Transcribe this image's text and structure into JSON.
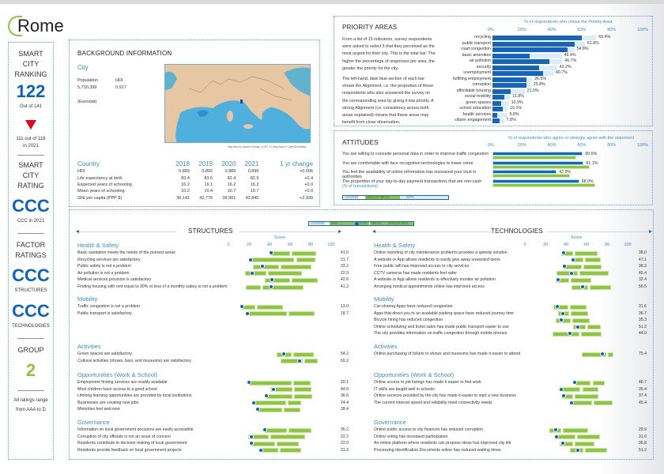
{
  "city_name": "Rome",
  "left_column": {
    "ranking_title": "SMART CITY RANKING",
    "ranking_title_lines": [
      "SMART",
      "CITY",
      "RANKING"
    ],
    "ranking": "122",
    "ranking_out_of": "Out of 141",
    "trend": "down",
    "prev_ranking_lines": [
      "111 out of 118",
      "in 2021"
    ],
    "rating_title_lines": [
      "SMART",
      "CITY RATING"
    ],
    "rating": "CCC",
    "rating_prev": "CCC in 2021",
    "factor_title_lines": [
      "FACTOR",
      "RATINGS"
    ],
    "structures_rating": "CCC",
    "structures_label": "STRUCTURES",
    "technologies_rating": "CCC",
    "technologies_label": "TECHNOLOGIES",
    "group_title": "GROUP",
    "group": "2",
    "footnote_lines": [
      "All ratings range",
      "from AAA to D"
    ],
    "colors": {
      "rating": "#0a63c2",
      "group": "#8dc63f",
      "trend": "#e8001c"
    }
  },
  "background": {
    "title": "BACKGROUND INFORMATION",
    "city_header": "City",
    "population_label": "Population",
    "population_value": "5,730,399",
    "hdi_label": "HDI",
    "hdi_value": "0.917",
    "source": "(Eurostat)",
    "map_credit": "Map tiles by Stamen Design CCBY 3.0 Map Data © OpenStreetMap",
    "country_table": {
      "headers": [
        "Country",
        "2018",
        "2019",
        "2020",
        "2021",
        "1 yr change"
      ],
      "rows": [
        [
          "HDI",
          "0.883",
          "0.892",
          "0.889",
          "0.895",
          "+0.006"
        ],
        [
          "Life expectancy at birth",
          "83.4",
          "83.5",
          "82.4",
          "82.9",
          "+0.4"
        ],
        [
          "Expected years of schooling",
          "16.2",
          "16.1",
          "16.2",
          "16.2",
          "+0.0"
        ],
        [
          "Mean years of schooling",
          "10.2",
          "10.4",
          "10.7",
          "10.7",
          "+0.0"
        ],
        [
          "GNI per capita (PPP $)",
          "36,141",
          "42,776",
          "39,901",
          "42,840",
          "+2,939"
        ]
      ]
    }
  },
  "priority_areas": {
    "title": "PRIORITY AREAS",
    "axis_title": "% of respondents who chose the Priority Area",
    "ticks": [
      "0%",
      "20%",
      "40%",
      "60%",
      "80%",
      "100%"
    ],
    "description_1": "From a list of 15 indicators, survey respondents were asked to select 5 that they perceived as the most urgent for their city. This is the total bar. The higher the percentage of responses per area, the greater the priority for the city.",
    "description_2": "The left-hand, dark blue section of each bar shows the Alignment, i.e. the proportion of those respondents who also answered the survey on the corresponding area by giving it low priority. A strong Alignment (i.e. consistency across both areas explained) means that these areas may benefit from close observation.",
    "items": [
      {
        "label": "recycling",
        "total": 69.4,
        "alignment": 60,
        "value_label": "69.4%"
      },
      {
        "label": "public transport",
        "total": 61.8,
        "alignment": 55,
        "value_label": "61.8%"
      },
      {
        "label": "road congestion",
        "total": 54.8,
        "alignment": 50,
        "value_label": "54.8%"
      },
      {
        "label": "basic amenities",
        "total": 46.4,
        "alignment": 25,
        "value_label": "46.4%"
      },
      {
        "label": "air pollution",
        "total": 46.7,
        "alignment": 38,
        "value_label": "46.7%"
      },
      {
        "label": "security",
        "total": 43.2,
        "alignment": 31,
        "value_label": "43.2%"
      },
      {
        "label": "unemployment",
        "total": 40.7,
        "alignment": 34,
        "value_label": "40.7%"
      },
      {
        "label": "fulfilling employment",
        "total": 26.5,
        "alignment": 23,
        "value_label": "26.5%"
      },
      {
        "label": "corruption",
        "total": 25.8,
        "alignment": 23,
        "value_label": "25.8%"
      },
      {
        "label": "affordable housing",
        "total": 21.5,
        "alignment": 12,
        "value_label": "21.5%"
      },
      {
        "label": "social mobility",
        "total": 11.8,
        "alignment": 8,
        "value_label": "11.8%"
      },
      {
        "label": "green spaces",
        "total": 10.9,
        "alignment": 6,
        "value_label": "10.9%"
      },
      {
        "label": "school education",
        "total": 10.1,
        "alignment": 7,
        "value_label": "10.1%"
      },
      {
        "label": "health services",
        "total": 9.8,
        "alignment": 3,
        "value_label": "9.8%"
      },
      {
        "label": "citizen engagement",
        "total": 7.8,
        "alignment": 5,
        "value_label": "7.8%"
      }
    ],
    "colors": {
      "alignment": "#1565c0",
      "total": "#daeefa"
    }
  },
  "attitudes": {
    "title": "ATTITUDES",
    "axis_title": "% of respondents who agree or strongly agree with the statement",
    "ticks": [
      "0%",
      "20%",
      "40%",
      "60%",
      "80%",
      "100%"
    ],
    "items": [
      {
        "label": "You are willing to concede personal data in order to improve traffic congestion",
        "sub": "",
        "city": 60.5,
        "group": 56,
        "value_label": "60.5%"
      },
      {
        "label": "You are comfortable with face recognition technologies to lower crime",
        "sub": "",
        "city": 61.1,
        "group": 65,
        "value_label": "61.1%"
      },
      {
        "label": "You feel the availability of online information has increased your trust in authorities",
        "sub": "",
        "city": 42.9,
        "group": 52,
        "value_label": "42.9%"
      },
      {
        "label": "The proportion of your day-to-day payment transactions that are non-cash",
        "sub": "(% of transactions)",
        "city": 58.0,
        "group": 69,
        "value_label": "58.0%"
      }
    ],
    "legend": {
      "label": "LEGEND:",
      "group": "GROUP MEAN",
      "city": "CITY"
    }
  },
  "scores": {
    "legend": {
      "label": "LEGEND:",
      "min": "MIN",
      "city": "CITY",
      "mean": "MEAN",
      "max": "GROUP MAX"
    },
    "score_label": "Score",
    "ticks": [
      "0",
      "20",
      "40",
      "60",
      "80",
      "100"
    ],
    "structures": {
      "title": "STRUCTURES",
      "categories": [
        {
          "name": "Health & Safety",
          "items": [
            {
              "label": "Basic sanitation meets the needs of the poorest areas",
              "value": 41.5,
              "min": 41,
              "mean": 61,
              "max": 85,
              "value_label": "41.5"
            },
            {
              "label": "Recycling services are satisfactory",
              "value": 21.7,
              "min": 21,
              "mean": 65,
              "max": 84,
              "value_label": "21.7"
            },
            {
              "label": "Public safety is not a problem",
              "value": 33.2,
              "min": 24,
              "mean": 50,
              "max": 80,
              "value_label": "33.2"
            },
            {
              "label": "Air pollution is not a problem",
              "value": 22.9,
              "min": 16,
              "mean": 38,
              "max": 71,
              "value_label": "22.9"
            },
            {
              "label": "Medical services provision is satisfactory",
              "value": 42.6,
              "min": 35,
              "mean": 61,
              "max": 86,
              "value_label": "42.6"
            },
            {
              "label": "Finding housing with rent equal to 30% or less of a monthly salary is not a problem",
              "value": 41.2,
              "min": 17,
              "mean": 32,
              "max": 72,
              "value_label": "41.2"
            }
          ]
        },
        {
          "name": "Mobility",
          "items": [
            {
              "label": "Traffic congestion is not a problem",
              "value": 13.0,
              "min": 13,
              "mean": 27,
              "max": 52,
              "value_label": "13.0"
            },
            {
              "label": "Public transport is satisfactory",
              "value": 18.7,
              "min": 18,
              "mean": 58,
              "max": 83,
              "value_label": "18.7"
            }
          ]
        },
        {
          "name": "Activities",
          "items": [
            {
              "label": "Green spaces are satisfactory",
              "value": 54.2,
              "min": 47,
              "mean": 62,
              "max": 82,
              "value_label": "54.2"
            },
            {
              "label": "Cultural activities (shows, bars, and museums) are satisfactory",
              "value": 69.2,
              "min": 51,
              "mean": 73,
              "max": 86,
              "value_label": "69.2"
            }
          ]
        },
        {
          "name": "Opportunities (Work & School)",
          "items": [
            {
              "label": "Employment finding services are readily available",
              "value": 20.1,
              "min": 20,
              "mean": 62,
              "max": 79,
              "value_label": "20.1"
            },
            {
              "label": "Most children have access to a good school",
              "value": 44.0,
              "min": 41,
              "mean": 63,
              "max": 80,
              "value_label": "44.0"
            },
            {
              "label": "Lifelong learning opportunities are provided by local institutions",
              "value": 36.6,
              "min": 36,
              "mean": 63,
              "max": 81,
              "value_label": "36.6"
            },
            {
              "label": "Businesses are creating new jobs",
              "value": 24.4,
              "min": 24,
              "mean": 57,
              "max": 70,
              "value_label": "24.4"
            },
            {
              "label": "Minorities feel welcome",
              "value": 28.4,
              "min": 28,
              "mean": 53,
              "max": 69,
              "value_label": "28.4"
            }
          ]
        },
        {
          "name": "Governance",
          "items": [
            {
              "label": "Information on local government decisions are easily accessible",
              "value": 35.2,
              "min": 35,
              "mean": 58,
              "max": 80,
              "value_label": "35.2"
            },
            {
              "label": "Corruption of city officials is not an issue of concern",
              "value": 22.2,
              "min": 19,
              "mean": 40,
              "max": 74,
              "value_label": "22.2"
            },
            {
              "label": "Residents contribute to decision making of local government",
              "value": 22.0,
              "min": 22,
              "mean": 46,
              "max": 68,
              "value_label": "22.0"
            },
            {
              "label": "Residents provide feedback on local government projects",
              "value": 31.3,
              "min": 31,
              "mean": 49,
              "max": 70,
              "value_label": "31.3"
            }
          ]
        }
      ]
    },
    "technologies": {
      "title": "TECHNOLOGIES",
      "categories": [
        {
          "name": "Health & Safety",
          "items": [
            {
              "label": "Online reporting of city maintenance problems provides a speedy solution",
              "value": 38.0,
              "min": 35,
              "mean": 48,
              "max": 70,
              "value_label": "38.0"
            },
            {
              "label": "A website or App allows residents to easily give away unwanted items",
              "value": 47.1,
              "min": 47,
              "mean": 58,
              "max": 73,
              "value_label": "47.1"
            },
            {
              "label": "Free public wifi has improved access to city services",
              "value": 38.3,
              "min": 38,
              "mean": 56,
              "max": 74,
              "value_label": "38.3"
            },
            {
              "label": "CCTV cameras has made residents feel safer",
              "value": 45.4,
              "min": 31,
              "mean": 52,
              "max": 81,
              "value_label": "45.4"
            },
            {
              "label": "A website or App allows residents to effectively monitor air pollution",
              "value": 32.4,
              "min": 30,
              "mean": 44,
              "max": 64,
              "value_label": "32.4"
            },
            {
              "label": "Arranging medical appointments online has improved access",
              "value": 56.5,
              "min": 45,
              "mean": 62,
              "max": 83,
              "value_label": "56.5"
            }
          ]
        },
        {
          "name": "Mobility",
          "items": [
            {
              "label": "Car-sharing Apps have reduced congestion",
              "value": 31.6,
              "min": 28,
              "mean": 43,
              "max": 59,
              "value_label": "31.6"
            },
            {
              "label": "Apps that direct you to an available parking space have reduced journey time",
              "value": 36.7,
              "min": 32,
              "mean": 44,
              "max": 61,
              "value_label": "36.7"
            },
            {
              "label": "Bicycle hiring has reduced congestion",
              "value": 35.3,
              "min": 30,
              "mean": 45,
              "max": 62,
              "value_label": "35.3"
            },
            {
              "label": "Online scheduling and ticket sales has made public transport easier to use",
              "value": 51.2,
              "min": 47,
              "mean": 60,
              "max": 73,
              "value_label": "51.2"
            },
            {
              "label": "The city provides information on traffic congestion through mobile phones",
              "value": 44.0,
              "min": 27,
              "mean": 54,
              "max": 74,
              "value_label": "44.0"
            }
          ]
        },
        {
          "name": "Activities",
          "items": [
            {
              "label": "Online purchasing of tickets to shows and museums has made it easier to attend",
              "value": 75.4,
              "min": 55,
              "mean": 80,
              "max": 85,
              "value_label": "75.4"
            }
          ]
        },
        {
          "name": "Opportunities (Work & School)",
          "items": [
            {
              "label": "Online access to job listings has made it easier to find work",
              "value": 48.7,
              "min": 49,
              "mean": 65,
              "max": 77,
              "value_label": "48.7"
            },
            {
              "label": "IT skills are taught well in schools",
              "value": 35.4,
              "min": 34,
              "mean": 55,
              "max": 71,
              "value_label": "35.4"
            },
            {
              "label": "Online services provided by the city has made it easier to start a new business",
              "value": 37.4,
              "min": 35,
              "mean": 48,
              "max": 71,
              "value_label": "37.4"
            },
            {
              "label": "The current internet speed and reliability meet connectivity needs",
              "value": 45.4,
              "min": 45,
              "mean": 66,
              "max": 85,
              "value_label": "45.4"
            }
          ]
        },
        {
          "name": "Governance",
          "items": [
            {
              "label": "Online public access to city finances has reduced corruption",
              "value": 29.9,
              "min": 24,
              "mean": 36,
              "max": 61,
              "value_label": "29.9"
            },
            {
              "label": "Online voting has increased participation",
              "value": 31.0,
              "min": 31,
              "mean": 50,
              "max": 72,
              "value_label": "31.0"
            },
            {
              "label": "An online platform where residents can propose ideas has improved city life",
              "value": 36.8,
              "min": 34,
              "mean": 48,
              "max": 67,
              "value_label": "36.8"
            },
            {
              "label": "Processing Identification Documents online has reduced waiting times",
              "value": 51.2,
              "min": 44,
              "mean": 58,
              "max": 79,
              "value_label": "51.2"
            }
          ]
        }
      ]
    },
    "colors": {
      "bar": "#8dc63f",
      "dot": "#0a63c2",
      "category": "#3a8bd8"
    }
  }
}
